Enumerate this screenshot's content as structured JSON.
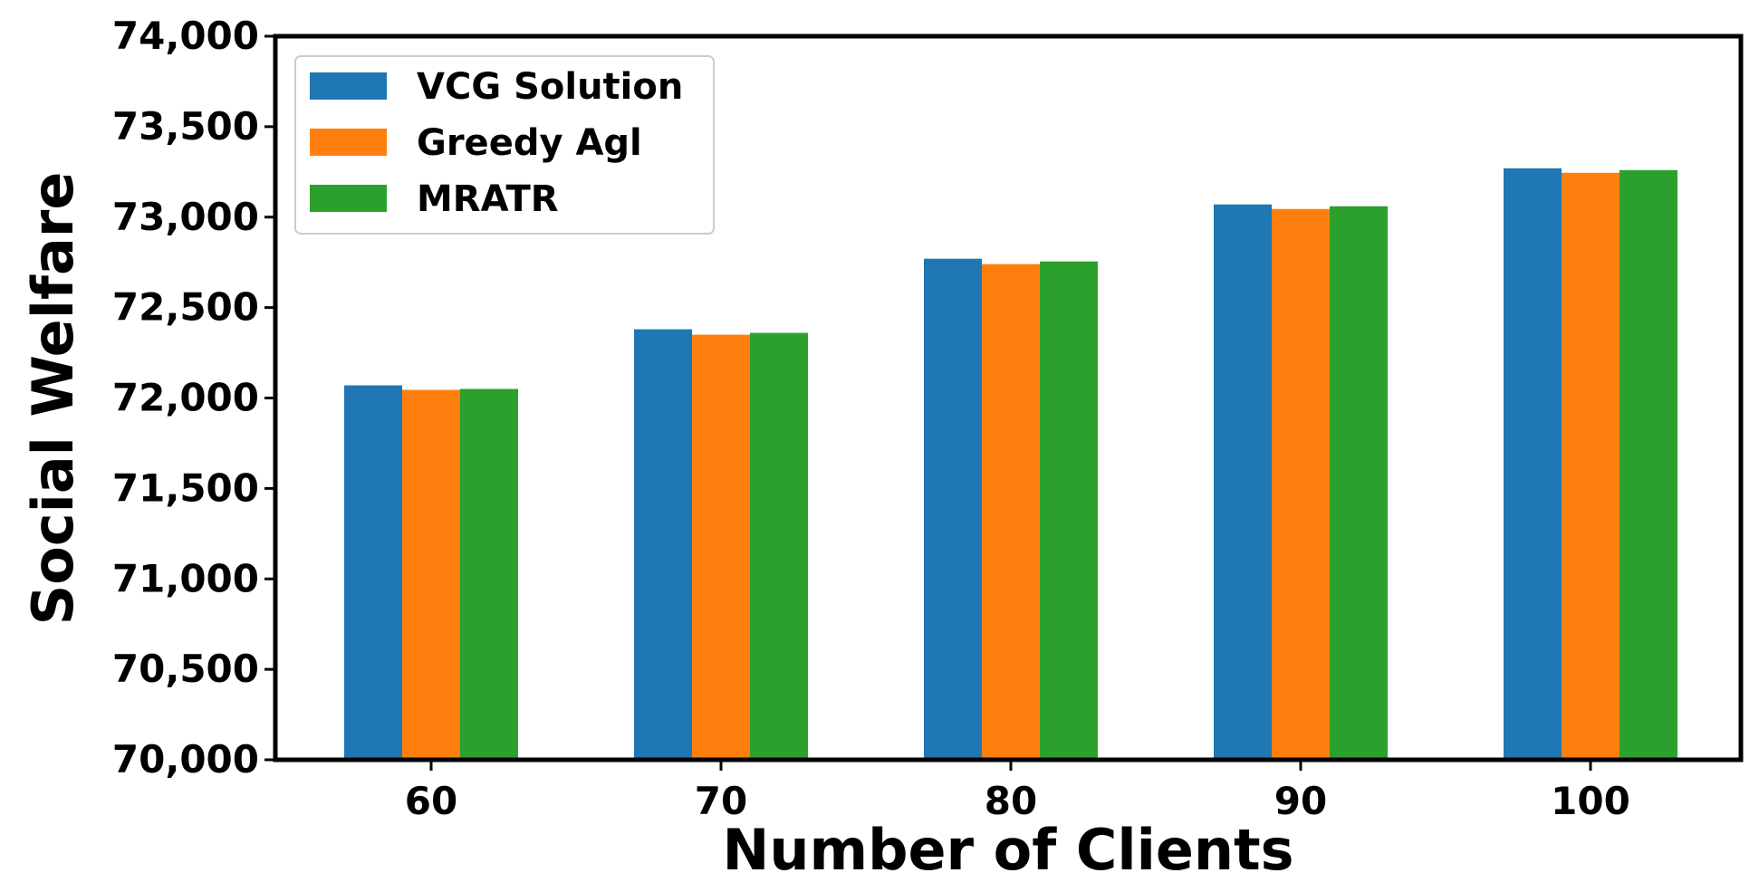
{
  "chart_data": {
    "type": "bar",
    "title": "",
    "xlabel": "Number of Clients",
    "ylabel": "Social Welfare",
    "categories": [
      "60",
      "70",
      "80",
      "90",
      "100"
    ],
    "series": [
      {
        "name": "VCG Solution",
        "color": "#1f77b4",
        "values": [
          72070,
          72380,
          72770,
          73070,
          73270
        ]
      },
      {
        "name": "Greedy Agl",
        "color": "#ff7f0e",
        "values": [
          72045,
          72350,
          72740,
          73045,
          73245
        ]
      },
      {
        "name": "MRATR",
        "color": "#2ca02c",
        "values": [
          72050,
          72360,
          72755,
          73060,
          73260
        ]
      }
    ],
    "ylim": [
      70000,
      74000
    ],
    "yticks": [
      70000,
      70500,
      71000,
      71500,
      72000,
      72500,
      73000,
      73500,
      74000
    ],
    "ytick_labels": [
      "70,000",
      "70,500",
      "71,000",
      "71,500",
      "72,000",
      "72,500",
      "73,000",
      "73,500",
      "74,000"
    ],
    "grid": false,
    "legend_position": "top-left"
  }
}
